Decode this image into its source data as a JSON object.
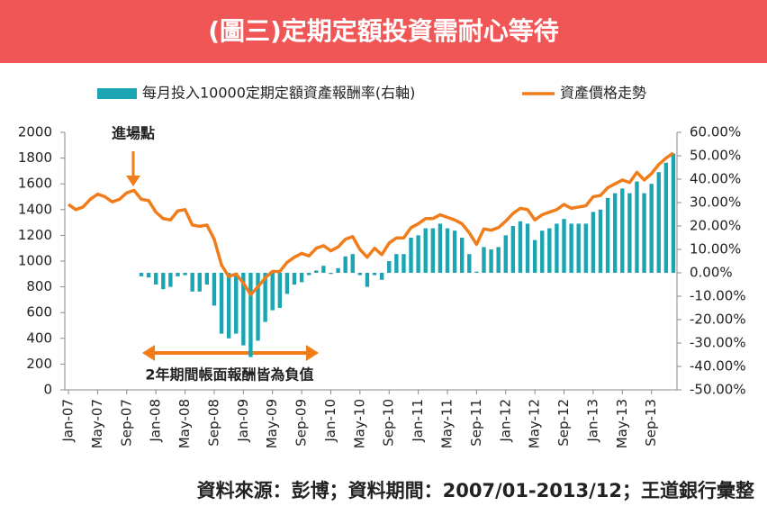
{
  "chart_data": {
    "type": "bar-line",
    "title": "(圖三)定期定額投資需耐心等待",
    "source": "資料來源：彭博；資料期間：2007/01-2013/12；王道銀行彙整",
    "annotations": [
      "進場點",
      "2年期間帳面報酬皆為負值"
    ],
    "categories": [
      "Jan-07",
      null,
      null,
      null,
      "May-07",
      null,
      null,
      null,
      "Sep-07",
      null,
      null,
      null,
      "Jan-08",
      null,
      null,
      null,
      "May-08",
      null,
      null,
      null,
      "Sep-08",
      null,
      null,
      null,
      "Jan-09",
      null,
      null,
      null,
      "May-09",
      null,
      null,
      null,
      "Sep-09",
      null,
      null,
      null,
      "Jan-10",
      null,
      null,
      null,
      "May-10",
      null,
      null,
      null,
      "Sep-10",
      null,
      null,
      null,
      "Jan-11",
      null,
      null,
      null,
      "May-11",
      null,
      null,
      null,
      "Sep-11",
      null,
      null,
      null,
      "Jan-12",
      null,
      null,
      null,
      "May-12",
      null,
      null,
      null,
      "Sep-12",
      null,
      null,
      null,
      "Jan-13",
      null,
      null,
      null,
      "May-13",
      null,
      null,
      null,
      "Sep-13",
      null,
      null,
      null
    ],
    "series": [
      {
        "name": "每月投入10000定期定額資產報酬率(右軸)",
        "type": "bar",
        "axis": "y2",
        "color": "#1ba5b3",
        "values": [
          null,
          null,
          null,
          null,
          null,
          null,
          null,
          null,
          null,
          null,
          -1.5,
          -2,
          -5,
          -7,
          -6,
          -1.5,
          -1,
          -8,
          -8,
          -5,
          -14,
          -26,
          -28,
          -26,
          -31,
          -36,
          -29,
          -21,
          -16,
          -15,
          -9,
          -5,
          -4,
          -1,
          1,
          3,
          -0.5,
          2,
          7,
          8,
          -1,
          -6,
          -1,
          -3,
          5,
          8,
          8,
          15,
          16,
          19,
          19,
          21,
          19,
          18,
          15,
          8,
          0.5,
          11,
          10,
          11,
          16,
          20,
          22,
          21,
          14,
          18,
          19,
          21,
          23,
          21,
          21,
          21,
          26,
          27,
          32,
          34,
          36,
          34,
          39,
          34,
          38,
          43,
          47,
          51
        ]
      },
      {
        "name": "資產價格走勢",
        "type": "line",
        "color": "#f07d1a",
        "values": [
          1440,
          1400,
          1420,
          1480,
          1520,
          1500,
          1460,
          1480,
          1530,
          1550,
          1480,
          1470,
          1380,
          1330,
          1320,
          1390,
          1400,
          1280,
          1270,
          1280,
          1170,
          970,
          880,
          900,
          830,
          740,
          800,
          870,
          920,
          920,
          990,
          1030,
          1060,
          1040,
          1100,
          1120,
          1080,
          1110,
          1170,
          1190,
          1090,
          1030,
          1100,
          1050,
          1140,
          1180,
          1180,
          1260,
          1290,
          1330,
          1330,
          1360,
          1340,
          1320,
          1290,
          1220,
          1130,
          1250,
          1240,
          1260,
          1310,
          1370,
          1410,
          1400,
          1320,
          1360,
          1380,
          1400,
          1440,
          1410,
          1420,
          1430,
          1500,
          1510,
          1570,
          1600,
          1630,
          1610,
          1690,
          1630,
          1680,
          1750,
          1800,
          1840
        ]
      }
    ],
    "ylim": [
      0,
      2000
    ],
    "yticks": [
      0,
      200,
      400,
      600,
      800,
      1000,
      1200,
      1400,
      1600,
      1800,
      2000
    ],
    "y2lim": [
      -50,
      60
    ],
    "y2ticks": [
      {
        "value": -50,
        "label": "-50.00%"
      },
      {
        "value": -40,
        "label": "-40.00%"
      },
      {
        "value": -30,
        "label": "-30.00%"
      },
      {
        "value": -20,
        "label": "-20.00%"
      },
      {
        "value": -10,
        "label": "-10.00%"
      },
      {
        "value": 0,
        "label": "0.00%"
      },
      {
        "value": 10,
        "label": "10.00%"
      },
      {
        "value": 20,
        "label": "20.00%"
      },
      {
        "value": 30,
        "label": "30.00%"
      },
      {
        "value": 40,
        "label": "40.00%"
      },
      {
        "value": 50,
        "label": "50.00%"
      },
      {
        "value": 60,
        "label": "60.00%"
      }
    ]
  }
}
